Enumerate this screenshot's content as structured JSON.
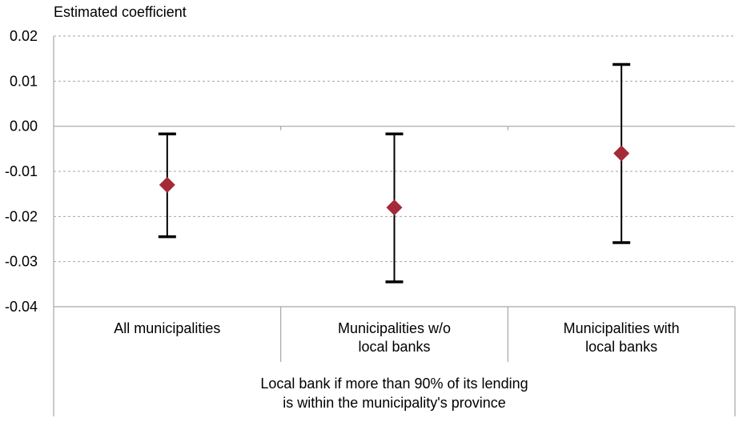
{
  "chart_data": {
    "type": "scatter",
    "ylabel": "Estimated coefficient",
    "ylim": [
      -0.04,
      0.02
    ],
    "yticks": [
      "0.02",
      "0.01",
      "0.00",
      "-0.01",
      "-0.02",
      "-0.03",
      "-0.04"
    ],
    "grid": true,
    "categories": [
      [
        "All municipalities"
      ],
      [
        "Municipalities w/o",
        "local banks"
      ],
      [
        "Municipalities with",
        "local banks"
      ]
    ],
    "group_label": [
      "Local bank if more than 90% of its lending",
      "is within the municipality's province"
    ],
    "series": [
      {
        "values": [
          -0.013,
          -0.018,
          -0.006
        ],
        "lower": [
          -0.0245,
          -0.0345,
          -0.0258
        ],
        "upper": [
          -0.0017,
          -0.0017,
          0.0137
        ]
      }
    ],
    "colors": {
      "point": "#a52a38",
      "errorbar": "#000000",
      "grid": "#a6a6a6",
      "axis": "#a6a6a6"
    }
  }
}
